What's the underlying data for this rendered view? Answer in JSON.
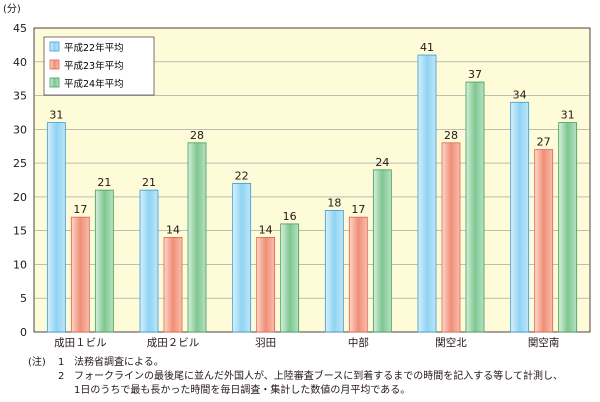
{
  "chart_data": {
    "type": "bar",
    "unit_label": "(分)",
    "categories": [
      "成田１ビル",
      "成田２ビル",
      "羽田",
      "中部",
      "関空北",
      "関空南"
    ],
    "series": [
      {
        "name": "平成22年平均",
        "values": [
          31,
          21,
          22,
          18,
          41,
          34
        ],
        "color": "#8fd3f4"
      },
      {
        "name": "平成23年平均",
        "values": [
          17,
          14,
          14,
          17,
          28,
          27
        ],
        "color": "#f4a08a"
      },
      {
        "name": "平成24年平均",
        "values": [
          21,
          28,
          16,
          24,
          37,
          31
        ],
        "color": "#8fcf9f"
      }
    ],
    "ylim": [
      0,
      45
    ],
    "yticks": [
      0,
      5,
      10,
      15,
      20,
      25,
      30,
      35,
      40,
      45
    ],
    "grid": true,
    "legend_position": "top-left",
    "plot_background": "#fdfbd8"
  },
  "notes": {
    "head": "(注)",
    "items": [
      {
        "num": "1",
        "text": "法務省調査による。"
      },
      {
        "num": "2",
        "text": "フォークラインの最後尾に並んだ外国人が、上陸審査ブースに到着するまでの時間を記入する等して計測し、"
      }
    ],
    "continuation": "1日のうちで最も長かった時間を毎日調査・集計した数値の月平均である。"
  }
}
